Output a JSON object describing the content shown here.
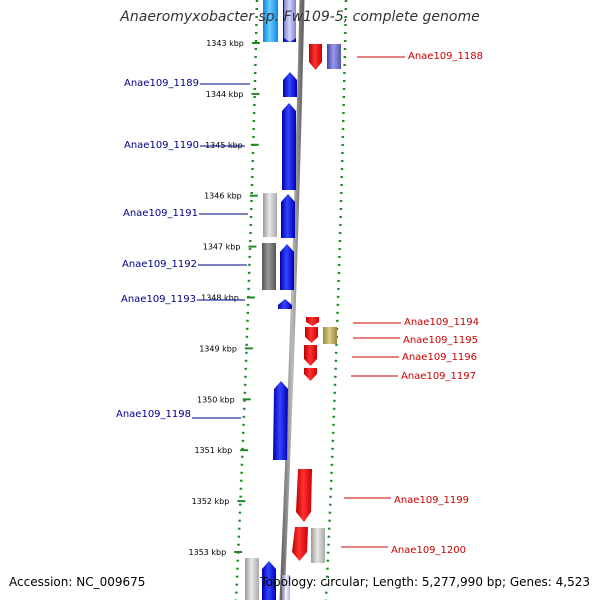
{
  "title": "Anaeromyxobacter sp. Fw109-5, complete genome",
  "footer": {
    "accession": "Accession: NC_009675",
    "summary": "Topology: circular; Length: 5,277,990 bp; Genes: 4,523"
  },
  "colors": {
    "forward_strand": "#0000ee",
    "reverse_strand": "#ee0000",
    "backbone": "#888888",
    "tick": "#228822",
    "left_label": "#00008b",
    "right_label": "#cc0000"
  },
  "ticks": [
    {
      "label": "1343 kbp",
      "kbp": 1343
    },
    {
      "label": "1344 kbp",
      "kbp": 1344
    },
    {
      "label": "1345 kbp",
      "kbp": 1345
    },
    {
      "label": "1346 kbp",
      "kbp": 1346
    },
    {
      "label": "1347 kbp",
      "kbp": 1347
    },
    {
      "label": "1348 kbp",
      "kbp": 1348
    },
    {
      "label": "1349 kbp",
      "kbp": 1349
    },
    {
      "label": "1350 kbp",
      "kbp": 1350
    },
    {
      "label": "1351 kbp",
      "kbp": 1351
    },
    {
      "label": "1352 kbp",
      "kbp": 1352
    },
    {
      "label": "1353 kbp",
      "kbp": 1353
    }
  ],
  "genes": [
    {
      "name": "Anae109_1188",
      "strand": "reverse"
    },
    {
      "name": "Anae109_1189",
      "strand": "forward"
    },
    {
      "name": "Anae109_1190",
      "strand": "forward"
    },
    {
      "name": "Anae109_1191",
      "strand": "forward"
    },
    {
      "name": "Anae109_1192",
      "strand": "forward"
    },
    {
      "name": "Anae109_1193",
      "strand": "forward"
    },
    {
      "name": "Anae109_1194",
      "strand": "reverse"
    },
    {
      "name": "Anae109_1195",
      "strand": "reverse"
    },
    {
      "name": "Anae109_1196",
      "strand": "reverse"
    },
    {
      "name": "Anae109_1197",
      "strand": "reverse"
    },
    {
      "name": "Anae109_1198",
      "strand": "forward"
    },
    {
      "name": "Anae109_1199",
      "strand": "reverse"
    },
    {
      "name": "Anae109_1200",
      "strand": "reverse"
    }
  ]
}
